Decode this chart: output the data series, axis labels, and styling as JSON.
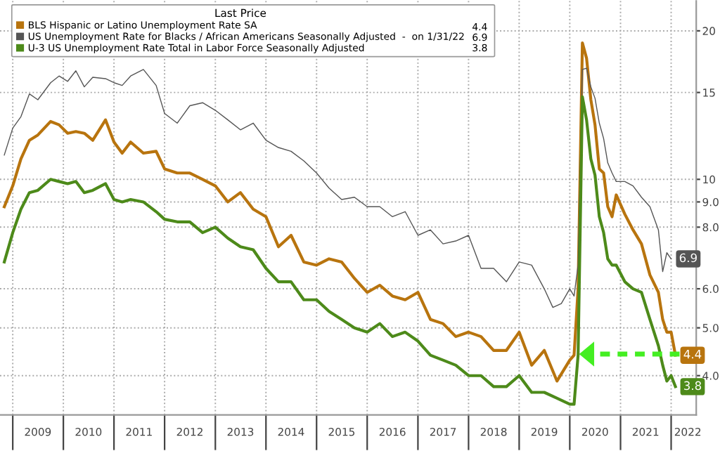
{
  "chart_data": {
    "type": "line",
    "legend_title": "Last Price",
    "legend": "top left",
    "log": "y",
    "grid": true,
    "ylim": [
      3.33,
      23
    ],
    "yticks": [
      {
        "value": 4,
        "label": "4.0"
      },
      {
        "value": 5,
        "label": "5.0"
      },
      {
        "value": 6,
        "label": "6.0"
      },
      {
        "value": 8,
        "label": "8.0"
      },
      {
        "value": 9,
        "label": "9.0"
      },
      10,
      15,
      20
    ],
    "xlim": [
      "2008-10",
      "2022-07"
    ],
    "xticks": [
      {
        "value": "2009-01",
        "label": null
      },
      {
        "value": "2009-07",
        "label": "2009"
      },
      {
        "value": "2010-01",
        "label": null
      },
      {
        "value": "2010-07",
        "label": "2010"
      },
      {
        "value": "2011-01",
        "label": null
      },
      {
        "value": "2011-07",
        "label": "2011"
      },
      {
        "value": "2012-01",
        "label": null
      },
      {
        "value": "2012-07",
        "label": "2012"
      },
      {
        "value": "2013-01",
        "label": null
      },
      {
        "value": "2013-07",
        "label": "2013"
      },
      {
        "value": "2014-01",
        "label": null
      },
      {
        "value": "2014-07",
        "label": "2014"
      },
      {
        "value": "2015-01",
        "label": null
      },
      {
        "value": "2015-07",
        "label": "2015"
      },
      {
        "value": "2016-01",
        "label": null
      },
      {
        "value": "2016-07",
        "label": "2016"
      },
      {
        "value": "2017-01",
        "label": null
      },
      {
        "value": "2017-07",
        "label": "2017"
      },
      {
        "value": "2018-01",
        "label": null
      },
      {
        "value": "2018-07",
        "label": "2018"
      },
      {
        "value": "2019-01",
        "label": null
      },
      {
        "value": "2019-07",
        "label": "2019"
      },
      {
        "value": "2020-01",
        "label": null
      },
      {
        "value": "2020-07",
        "label": "2020"
      },
      {
        "value": "2021-01",
        "label": null
      },
      {
        "value": "2021-07",
        "label": "2021"
      },
      {
        "value": "2022-01",
        "label": null
      },
      {
        "value": "2022-05",
        "label": "2022"
      }
    ],
    "series": [
      {
        "name": "BLS Hispanic or Latino Unemployment Rate SA",
        "color": "#b8740e",
        "x": [
          "2008-11",
          "2009-01",
          "2009-03",
          "2009-05",
          "2009-07",
          "2009-10",
          "2009-12",
          "2010-02",
          "2010-04",
          "2010-06",
          "2010-08",
          "2010-11",
          "2011-01",
          "2011-03",
          "2011-05",
          "2011-08",
          "2011-11",
          "2012-01",
          "2012-04",
          "2012-07",
          "2012-10",
          "2013-01",
          "2013-04",
          "2013-07",
          "2013-10",
          "2014-01",
          "2014-04",
          "2014-07",
          "2014-10",
          "2015-01",
          "2015-04",
          "2015-07",
          "2015-10",
          "2016-01",
          "2016-04",
          "2016-07",
          "2016-10",
          "2017-01",
          "2017-04",
          "2017-07",
          "2017-10",
          "2018-01",
          "2018-04",
          "2018-07",
          "2018-10",
          "2019-01",
          "2019-04",
          "2019-07",
          "2019-10",
          "2020-01",
          "2020-02",
          "2020-03",
          "2020-04",
          "2020-05",
          "2020-06",
          "2020-07",
          "2020-08",
          "2020-09",
          "2020-10",
          "2020-11",
          "2020-12",
          "2021-02",
          "2021-04",
          "2021-06",
          "2021-08",
          "2021-10",
          "2021-11",
          "2021-12",
          "2022-01",
          "2022-02"
        ],
        "values": [
          8.8,
          9.7,
          11.0,
          12.0,
          12.3,
          13.1,
          12.9,
          12.4,
          12.5,
          12.4,
          12.0,
          13.2,
          11.9,
          11.3,
          11.9,
          11.3,
          11.4,
          10.5,
          10.3,
          10.3,
          10.0,
          9.7,
          9.0,
          9.4,
          8.7,
          8.4,
          7.3,
          7.7,
          6.8,
          6.7,
          6.9,
          6.8,
          6.3,
          5.9,
          6.1,
          5.8,
          5.7,
          5.9,
          5.2,
          5.1,
          4.8,
          4.9,
          4.8,
          4.5,
          4.5,
          4.9,
          4.2,
          4.5,
          3.9,
          4.3,
          4.4,
          6.0,
          18.9,
          17.6,
          14.5,
          12.9,
          10.5,
          10.3,
          8.8,
          8.4,
          9.3,
          8.5,
          7.9,
          7.4,
          6.4,
          5.9,
          5.2,
          4.9,
          4.9,
          4.4
        ],
        "value_labels": [
          null,
          null,
          null,
          null,
          null,
          null,
          null,
          null,
          null,
          null,
          null,
          null,
          null,
          null,
          null,
          null,
          null,
          null,
          null,
          null,
          null,
          null,
          null,
          null,
          null,
          null,
          null,
          null,
          null,
          null,
          null,
          null,
          null,
          null,
          null,
          null,
          null,
          null,
          null,
          null,
          null,
          null,
          null,
          null,
          null,
          null,
          null,
          null,
          null,
          null,
          null,
          null,
          null,
          null,
          null,
          null,
          null,
          null,
          null,
          null,
          null,
          null,
          null,
          null,
          null,
          null,
          null,
          null,
          null,
          "4.4"
        ]
      },
      {
        "name": "US Unemployment Rate for Blacks / African Americans Seasonally Adjusted  -  on 1/31/22",
        "color": "#555555",
        "x": [
          "2008-11",
          "2009-01",
          "2009-03",
          "2009-05",
          "2009-07",
          "2009-10",
          "2009-12",
          "2010-02",
          "2010-04",
          "2010-06",
          "2010-08",
          "2010-11",
          "2011-01",
          "2011-03",
          "2011-05",
          "2011-08",
          "2011-11",
          "2012-01",
          "2012-04",
          "2012-07",
          "2012-10",
          "2013-01",
          "2013-04",
          "2013-07",
          "2013-10",
          "2014-01",
          "2014-04",
          "2014-07",
          "2014-10",
          "2015-01",
          "2015-04",
          "2015-07",
          "2015-10",
          "2016-01",
          "2016-04",
          "2016-07",
          "2016-10",
          "2017-01",
          "2017-04",
          "2017-07",
          "2017-10",
          "2018-01",
          "2018-04",
          "2018-07",
          "2018-10",
          "2019-01",
          "2019-04",
          "2019-07",
          "2019-09",
          "2019-11",
          "2020-01",
          "2020-02",
          "2020-03",
          "2020-04",
          "2020-05",
          "2020-06",
          "2020-07",
          "2020-08",
          "2020-09",
          "2020-10",
          "2020-11",
          "2020-12",
          "2021-02",
          "2021-04",
          "2021-06",
          "2021-08",
          "2021-10",
          "2021-11",
          "2021-12",
          "2022-01"
        ],
        "values": [
          11.2,
          12.7,
          13.4,
          14.9,
          14.5,
          15.7,
          16.2,
          15.8,
          16.6,
          15.4,
          16.1,
          16.0,
          15.7,
          15.5,
          16.2,
          16.7,
          15.5,
          13.6,
          13.0,
          14.1,
          14.3,
          13.8,
          13.2,
          12.6,
          13.0,
          12.0,
          11.6,
          11.4,
          10.9,
          10.3,
          9.6,
          9.1,
          9.2,
          8.8,
          8.8,
          8.4,
          8.6,
          7.7,
          7.9,
          7.4,
          7.5,
          7.7,
          6.6,
          6.6,
          6.2,
          6.8,
          6.7,
          6.0,
          5.5,
          5.6,
          6.0,
          5.8,
          6.7,
          16.7,
          16.8,
          15.4,
          14.6,
          13.0,
          12.1,
          10.8,
          10.3,
          9.9,
          9.9,
          9.7,
          9.2,
          8.8,
          7.9,
          6.5,
          7.1,
          6.9
        ],
        "value_labels": [
          null,
          null,
          null,
          null,
          null,
          null,
          null,
          null,
          null,
          null,
          null,
          null,
          null,
          null,
          null,
          null,
          null,
          null,
          null,
          null,
          null,
          null,
          null,
          null,
          null,
          null,
          null,
          null,
          null,
          null,
          null,
          null,
          null,
          null,
          null,
          null,
          null,
          null,
          null,
          null,
          null,
          null,
          null,
          null,
          null,
          null,
          null,
          null,
          null,
          null,
          null,
          null,
          null,
          null,
          null,
          null,
          null,
          null,
          null,
          null,
          null,
          null,
          null,
          null,
          null,
          null,
          null,
          null,
          null,
          "6.9"
        ]
      },
      {
        "name": "U-3 US Unemployment Rate Total in Labor Force Seasonally Adjusted",
        "color": "#4d8a1a",
        "x": [
          "2008-11",
          "2009-01",
          "2009-03",
          "2009-05",
          "2009-07",
          "2009-10",
          "2009-12",
          "2010-02",
          "2010-04",
          "2010-06",
          "2010-08",
          "2010-11",
          "2011-01",
          "2011-03",
          "2011-05",
          "2011-08",
          "2011-11",
          "2012-01",
          "2012-04",
          "2012-07",
          "2012-10",
          "2013-01",
          "2013-04",
          "2013-07",
          "2013-10",
          "2014-01",
          "2014-04",
          "2014-07",
          "2014-10",
          "2015-01",
          "2015-04",
          "2015-07",
          "2015-10",
          "2016-01",
          "2016-04",
          "2016-07",
          "2016-10",
          "2017-01",
          "2017-04",
          "2017-07",
          "2017-10",
          "2018-01",
          "2018-04",
          "2018-07",
          "2018-10",
          "2019-01",
          "2019-04",
          "2019-07",
          "2019-10",
          "2020-01",
          "2020-02",
          "2020-03",
          "2020-04",
          "2020-05",
          "2020-06",
          "2020-07",
          "2020-08",
          "2020-09",
          "2020-10",
          "2020-11",
          "2020-12",
          "2021-02",
          "2021-04",
          "2021-06",
          "2021-08",
          "2021-10",
          "2021-11",
          "2021-12",
          "2022-01",
          "2022-02"
        ],
        "values": [
          6.8,
          7.8,
          8.7,
          9.4,
          9.5,
          10.0,
          9.9,
          9.8,
          9.9,
          9.4,
          9.5,
          9.8,
          9.1,
          9.0,
          9.1,
          9.0,
          8.6,
          8.3,
          8.2,
          8.2,
          7.8,
          8.0,
          7.6,
          7.3,
          7.2,
          6.6,
          6.2,
          6.2,
          5.7,
          5.7,
          5.4,
          5.2,
          5.0,
          4.9,
          5.1,
          4.8,
          4.9,
          4.7,
          4.4,
          4.3,
          4.2,
          4.0,
          4.0,
          3.8,
          3.8,
          4.0,
          3.7,
          3.7,
          3.6,
          3.5,
          3.5,
          4.4,
          14.7,
          13.2,
          11.0,
          10.2,
          8.4,
          7.8,
          6.9,
          6.7,
          6.7,
          6.2,
          6.0,
          5.9,
          5.2,
          4.6,
          4.2,
          3.9,
          4.0,
          3.8
        ],
        "value_labels": [
          null,
          null,
          null,
          null,
          null,
          null,
          null,
          null,
          null,
          null,
          null,
          null,
          null,
          null,
          null,
          null,
          null,
          null,
          null,
          null,
          null,
          null,
          null,
          null,
          null,
          null,
          null,
          null,
          null,
          null,
          null,
          null,
          null,
          null,
          null,
          null,
          null,
          null,
          null,
          null,
          null,
          null,
          null,
          null,
          null,
          null,
          null,
          null,
          null,
          null,
          null,
          null,
          null,
          null,
          null,
          null,
          null,
          null,
          null,
          null,
          null,
          null,
          null,
          null,
          null,
          null,
          null,
          null,
          null,
          "3.8"
        ]
      }
    ]
  }
}
